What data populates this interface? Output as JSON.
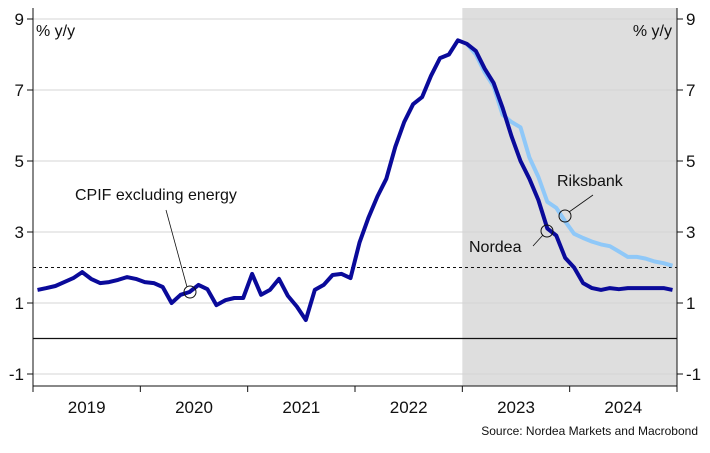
{
  "chart_data": {
    "type": "line",
    "title": "",
    "unit_left": "% y/y",
    "unit_right": "% y/y",
    "ylim": [
      -1.4,
      9.4
    ],
    "yticks": [
      -1,
      1,
      3,
      5,
      7,
      9
    ],
    "x_start": "2019-01",
    "x_end": "2024-12",
    "xtick_labels": [
      "2019",
      "2020",
      "2021",
      "2022",
      "2023",
      "2024"
    ],
    "grid": true,
    "target_line": 2,
    "forecast_shading_from": "2023-01",
    "colors": {
      "nordea": "#0a0a9a",
      "riksbank": "#8fc8f8",
      "shade": "#dedede"
    },
    "series": [
      {
        "name": "Nordea",
        "start": "2019-01",
        "values": [
          1.37,
          1.42,
          1.48,
          1.59,
          1.7,
          1.87,
          1.68,
          1.56,
          1.59,
          1.65,
          1.73,
          1.68,
          1.59,
          1.56,
          1.45,
          1.0,
          1.23,
          1.31,
          1.51,
          1.39,
          0.94,
          1.08,
          1.14,
          1.14,
          1.82,
          1.23,
          1.37,
          1.68,
          1.2,
          0.9,
          0.52,
          1.37,
          1.51,
          1.79,
          1.82,
          1.7,
          2.7,
          3.4,
          4.0,
          4.5,
          5.4,
          6.1,
          6.6,
          6.8,
          7.4,
          7.9,
          8.0,
          8.4,
          8.3,
          8.1,
          7.6,
          7.2,
          6.5,
          5.7,
          5.0,
          4.5,
          3.9,
          3.1,
          2.9,
          2.27,
          2.0,
          1.56,
          1.42,
          1.37,
          1.42,
          1.39,
          1.42,
          1.42,
          1.42,
          1.42,
          1.42,
          1.37
        ]
      },
      {
        "name": "Riksbank",
        "start": "2023-01",
        "values": [
          8.3,
          8.0,
          7.5,
          7.1,
          6.3,
          6.1,
          5.95,
          5.1,
          4.55,
          3.85,
          3.68,
          3.3,
          2.95,
          2.83,
          2.73,
          2.65,
          2.6,
          2.45,
          2.3,
          2.3,
          2.25,
          2.17,
          2.12,
          2.05
        ]
      }
    ],
    "annotations": {
      "cpif": "CPIF excluding energy",
      "riksbank": "Riksbank",
      "nordea": "Nordea"
    },
    "source": "Source: Nordea Markets and Macrobond"
  }
}
